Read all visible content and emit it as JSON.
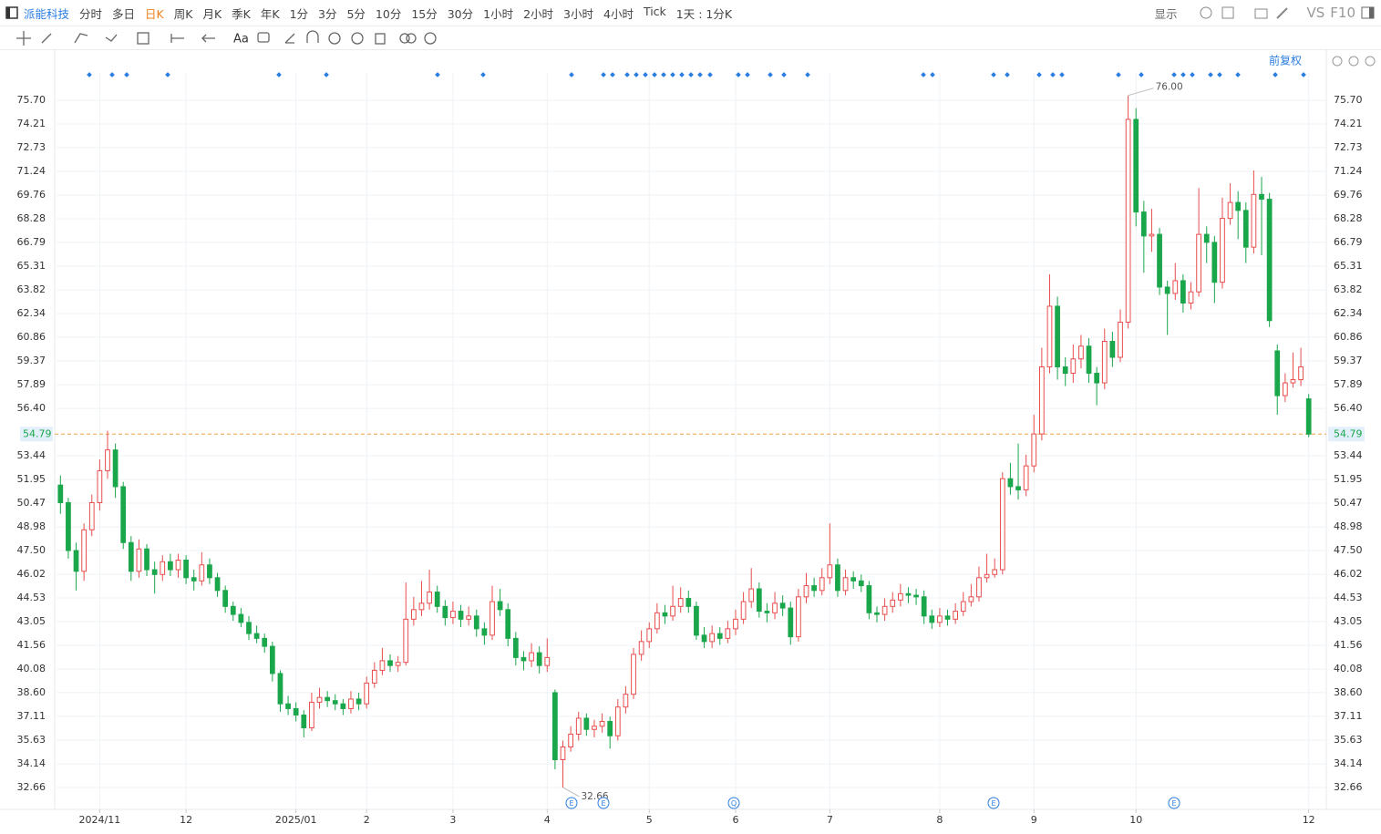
{
  "toolbar": {
    "stock": "派能科技",
    "periods": [
      "分时",
      "多日",
      "日K",
      "周K",
      "月K",
      "季K",
      "年K",
      "1分",
      "3分",
      "5分",
      "10分",
      "15分",
      "30分",
      "1小时",
      "2小时",
      "3小时",
      "4小时",
      "Tick",
      "1天 : 1分K"
    ],
    "display": "显示",
    "vs": "VS",
    "f10": "F10",
    "text_tool": "Aa",
    "adjust": "前复权"
  },
  "chart_data": {
    "type": "candlestick",
    "ylim": [
      31.29,
      77.41
    ],
    "yticks": [
      {
        "value": 75.7,
        "label": "75.70"
      },
      74.21,
      72.73,
      71.24,
      69.76,
      68.28,
      66.79,
      65.31,
      63.82,
      62.34,
      60.86,
      59.37,
      57.89,
      {
        "value": 56.4,
        "label": "56.40"
      },
      53.44,
      51.95,
      50.47,
      48.98,
      {
        "value": 47.5,
        "label": "47.50"
      },
      46.02,
      44.53,
      43.05,
      41.56,
      40.08,
      {
        "value": 38.6,
        "label": "38.60"
      },
      37.11,
      35.63,
      34.14,
      32.66
    ],
    "xlim": [
      0,
      160
    ],
    "xticks": [
      {
        "value": 5,
        "label": "2024/11"
      },
      {
        "value": 16,
        "label": "12"
      },
      {
        "value": 30,
        "label": "2025/01"
      },
      {
        "value": 39,
        "label": "2"
      },
      {
        "value": 50,
        "label": "3"
      },
      {
        "value": 62,
        "label": "4"
      },
      {
        "value": 75,
        "label": "5"
      },
      {
        "value": 86,
        "label": "6"
      },
      {
        "value": 98,
        "label": "7"
      },
      {
        "value": 112,
        "label": "8"
      },
      {
        "value": 124,
        "label": "9"
      },
      {
        "value": 137,
        "label": "10"
      },
      {
        "value": 159,
        "label": "12"
      }
    ],
    "up_color": "#e84d4d",
    "down_color": "#1aa64a",
    "grid": true,
    "last_price": 54.79,
    "max_label": {
      "index": 136,
      "value": 76,
      "label": "76.00"
    },
    "min_label": {
      "index": 64,
      "value": 32.66
    },
    "event_icons": [
      "E",
      "E",
      "Q",
      "E",
      "E"
    ],
    "ohlc": [
      [
        51.6,
        52.2,
        49.8,
        50.5
      ],
      [
        50.5,
        50.8,
        47.0,
        47.5
      ],
      [
        47.5,
        48.0,
        45.0,
        46.2
      ],
      [
        46.2,
        49.2,
        45.6,
        48.8
      ],
      [
        48.8,
        51.0,
        48.4,
        50.5
      ],
      [
        50.5,
        53.2,
        50.0,
        52.5
      ],
      [
        52.5,
        55.0,
        52.0,
        53.8
      ],
      [
        53.8,
        54.2,
        50.8,
        51.5
      ],
      [
        51.5,
        51.8,
        47.6,
        48.0
      ],
      [
        48.0,
        48.4,
        45.6,
        46.2
      ],
      [
        46.2,
        48.2,
        45.8,
        47.6
      ],
      [
        47.6,
        47.9,
        45.9,
        46.3
      ],
      [
        46.3,
        46.8,
        44.8,
        46.0
      ],
      [
        46.0,
        47.2,
        45.6,
        46.8
      ],
      [
        46.8,
        47.3,
        45.9,
        46.3
      ],
      [
        46.3,
        47.3,
        45.8,
        46.9
      ],
      [
        46.9,
        47.2,
        45.4,
        45.8
      ],
      [
        45.8,
        46.3,
        45.0,
        45.6
      ],
      [
        45.6,
        47.4,
        45.3,
        46.6
      ],
      [
        46.6,
        47.0,
        45.4,
        45.8
      ],
      [
        45.8,
        46.1,
        44.6,
        45.0
      ],
      [
        45.0,
        45.3,
        43.6,
        44.0
      ],
      [
        44.0,
        44.3,
        43.1,
        43.5
      ],
      [
        43.5,
        43.9,
        42.7,
        43.0
      ],
      [
        43.0,
        43.4,
        41.9,
        42.3
      ],
      [
        42.3,
        42.8,
        41.7,
        42.0
      ],
      [
        42.0,
        42.3,
        41.1,
        41.5
      ],
      [
        41.5,
        41.8,
        39.3,
        39.8
      ],
      [
        39.8,
        40.0,
        37.4,
        37.9
      ],
      [
        37.9,
        38.4,
        37.2,
        37.6
      ],
      [
        37.6,
        38.0,
        36.8,
        37.2
      ],
      [
        37.2,
        37.5,
        35.8,
        36.4
      ],
      [
        36.4,
        38.6,
        36.2,
        38.0
      ],
      [
        38.0,
        38.9,
        37.6,
        38.3
      ],
      [
        38.3,
        38.7,
        37.7,
        38.1
      ],
      [
        38.1,
        38.5,
        37.5,
        37.9
      ],
      [
        37.9,
        38.2,
        37.2,
        37.6
      ],
      [
        37.6,
        38.7,
        37.3,
        38.2
      ],
      [
        38.2,
        38.6,
        37.5,
        37.9
      ],
      [
        37.9,
        39.6,
        37.6,
        39.2
      ],
      [
        39.2,
        40.5,
        38.9,
        40.0
      ],
      [
        40.0,
        41.4,
        39.7,
        40.6
      ],
      [
        40.6,
        41.0,
        39.9,
        40.3
      ],
      [
        40.3,
        40.9,
        39.9,
        40.5
      ],
      [
        40.5,
        45.5,
        40.3,
        43.2
      ],
      [
        43.2,
        44.6,
        42.8,
        43.8
      ],
      [
        43.8,
        45.6,
        43.4,
        44.2
      ],
      [
        44.2,
        46.3,
        43.8,
        44.9
      ],
      [
        44.9,
        45.3,
        43.6,
        44.0
      ],
      [
        44.0,
        44.4,
        42.8,
        43.3
      ],
      [
        43.3,
        44.3,
        42.9,
        43.7
      ],
      [
        43.7,
        44.1,
        42.7,
        43.2
      ],
      [
        43.2,
        44.0,
        42.8,
        43.4
      ],
      [
        43.4,
        43.8,
        42.1,
        42.6
      ],
      [
        42.6,
        43.0,
        41.6,
        42.2
      ],
      [
        42.2,
        45.3,
        41.9,
        44.3
      ],
      [
        44.3,
        45.1,
        43.4,
        43.8
      ],
      [
        43.8,
        44.2,
        41.5,
        42.0
      ],
      [
        42.0,
        42.4,
        40.3,
        40.8
      ],
      [
        40.8,
        41.2,
        40.0,
        40.6
      ],
      [
        40.6,
        41.7,
        40.2,
        41.1
      ],
      [
        41.1,
        41.5,
        39.8,
        40.3
      ],
      [
        40.3,
        42.0,
        39.9,
        40.8
      ],
      [
        38.6,
        38.8,
        33.8,
        34.4
      ],
      [
        34.4,
        35.6,
        32.66,
        35.2
      ],
      [
        35.2,
        36.5,
        34.9,
        36.0
      ],
      [
        36.0,
        37.4,
        35.6,
        37.0
      ],
      [
        37.0,
        37.3,
        35.9,
        36.3
      ],
      [
        36.3,
        36.9,
        35.8,
        36.5
      ],
      [
        36.5,
        37.3,
        36.1,
        36.8
      ],
      [
        36.8,
        37.1,
        35.1,
        35.9
      ],
      [
        35.9,
        38.2,
        35.6,
        37.7
      ],
      [
        37.7,
        39.0,
        37.3,
        38.5
      ],
      [
        38.5,
        41.4,
        38.2,
        41.0
      ],
      [
        41.0,
        42.5,
        40.6,
        41.8
      ],
      [
        41.8,
        43.0,
        41.4,
        42.6
      ],
      [
        42.6,
        44.2,
        42.3,
        43.6
      ],
      [
        43.6,
        44.1,
        42.9,
        43.4
      ],
      [
        43.4,
        45.3,
        43.1,
        44.0
      ],
      [
        44.0,
        45.2,
        43.6,
        44.5
      ],
      [
        44.5,
        45.0,
        43.6,
        44.0
      ],
      [
        44.0,
        44.3,
        41.9,
        42.2
      ],
      [
        42.2,
        42.7,
        41.4,
        41.8
      ],
      [
        41.8,
        42.8,
        41.4,
        42.3
      ],
      [
        42.3,
        42.7,
        41.6,
        42.0
      ],
      [
        42.0,
        43.1,
        41.7,
        42.6
      ],
      [
        42.6,
        43.8,
        42.2,
        43.2
      ],
      [
        43.2,
        44.9,
        42.9,
        44.3
      ],
      [
        44.3,
        46.4,
        43.9,
        45.1
      ],
      [
        45.1,
        45.5,
        43.3,
        43.7
      ],
      [
        43.7,
        44.2,
        43.0,
        43.6
      ],
      [
        43.6,
        44.9,
        43.2,
        44.2
      ],
      [
        44.2,
        44.7,
        43.4,
        43.9
      ],
      [
        43.9,
        44.3,
        41.6,
        42.1
      ],
      [
        42.1,
        45.1,
        41.8,
        44.6
      ],
      [
        44.6,
        46.1,
        44.2,
        45.3
      ],
      [
        45.3,
        45.8,
        44.6,
        45.0
      ],
      [
        45.0,
        46.4,
        44.7,
        45.8
      ],
      [
        45.8,
        49.2,
        45.4,
        46.6
      ],
      [
        46.6,
        47.0,
        44.6,
        45.0
      ],
      [
        45.0,
        46.3,
        44.7,
        45.8
      ],
      [
        45.8,
        46.2,
        45.1,
        45.6
      ],
      [
        45.6,
        46.0,
        44.9,
        45.3
      ],
      [
        45.3,
        45.6,
        43.2,
        43.6
      ],
      [
        43.6,
        44.0,
        43.0,
        43.5
      ],
      [
        43.5,
        44.5,
        43.1,
        44.0
      ],
      [
        44.0,
        44.9,
        43.6,
        44.4
      ],
      [
        44.4,
        45.4,
        44.0,
        44.8
      ],
      [
        44.8,
        45.2,
        44.2,
        44.7
      ],
      [
        44.7,
        45.1,
        44.1,
        44.6
      ],
      [
        44.6,
        45.0,
        42.9,
        43.4
      ],
      [
        43.4,
        43.8,
        42.6,
        43.0
      ],
      [
        43.0,
        43.9,
        42.7,
        43.4
      ],
      [
        43.4,
        43.8,
        42.8,
        43.2
      ],
      [
        43.2,
        44.2,
        42.9,
        43.7
      ],
      [
        43.7,
        44.9,
        43.4,
        44.3
      ],
      [
        44.3,
        45.4,
        44.0,
        44.6
      ],
      [
        44.6,
        46.5,
        44.3,
        45.8
      ],
      [
        45.8,
        47.3,
        45.5,
        46.0
      ],
      [
        46.0,
        47.0,
        45.8,
        46.3
      ],
      [
        46.3,
        52.4,
        46.0,
        52.0
      ],
      [
        52.0,
        53.0,
        51.0,
        51.5
      ],
      [
        51.5,
        54.2,
        50.7,
        51.3
      ],
      [
        51.3,
        53.5,
        50.9,
        52.8
      ],
      [
        52.8,
        56.0,
        52.4,
        54.8
      ],
      [
        54.8,
        60.2,
        54.4,
        59.0
      ],
      [
        59.0,
        64.8,
        58.6,
        62.8
      ],
      [
        62.8,
        63.4,
        58.2,
        59.0
      ],
      [
        59.0,
        59.6,
        57.8,
        58.6
      ],
      [
        58.6,
        60.4,
        58.0,
        59.5
      ],
      [
        59.5,
        61.0,
        58.9,
        60.3
      ],
      [
        60.3,
        60.8,
        58.0,
        58.6
      ],
      [
        58.6,
        59.0,
        56.6,
        58.0
      ],
      [
        58.0,
        61.4,
        57.6,
        60.6
      ],
      [
        60.6,
        61.2,
        59.0,
        59.6
      ],
      [
        59.6,
        62.6,
        59.3,
        61.8
      ],
      [
        61.8,
        76,
        61.4,
        74.5
      ],
      [
        74.5,
        75.2,
        67.8,
        68.7
      ],
      [
        68.7,
        69.4,
        64.9,
        67.2
      ],
      [
        67.2,
        68.9,
        66.2,
        67.3
      ],
      [
        67.3,
        67.7,
        63.5,
        64.0
      ],
      [
        64.0,
        64.4,
        61.0,
        63.6
      ],
      [
        63.6,
        65.5,
        63.2,
        64.4
      ],
      [
        64.4,
        64.8,
        62.4,
        63.0
      ],
      [
        63.0,
        64.3,
        62.6,
        63.7
      ],
      [
        63.7,
        70.2,
        63.4,
        67.3
      ],
      [
        67.3,
        67.8,
        65.5,
        66.8
      ],
      [
        66.8,
        67.2,
        63.0,
        64.3
      ],
      [
        64.3,
        69.6,
        63.9,
        68.3
      ],
      [
        68.3,
        70.5,
        67.9,
        69.3
      ],
      [
        69.3,
        70.0,
        67.0,
        68.8
      ],
      [
        68.8,
        69.3,
        65.5,
        66.5
      ],
      [
        66.5,
        71.3,
        66.1,
        69.8
      ],
      [
        69.8,
        70.9,
        66.0,
        69.5
      ],
      [
        69.5,
        69.9,
        61.5,
        61.9
      ],
      [
        60.0,
        60.4,
        56.0,
        57.2
      ],
      [
        57.2,
        58.6,
        56.8,
        58.0
      ],
      [
        58.0,
        59.9,
        57.7,
        58.2
      ],
      [
        58.2,
        60.2,
        57.8,
        59.0
      ],
      [
        57.0,
        57.3,
        54.6,
        54.79
      ]
    ]
  }
}
